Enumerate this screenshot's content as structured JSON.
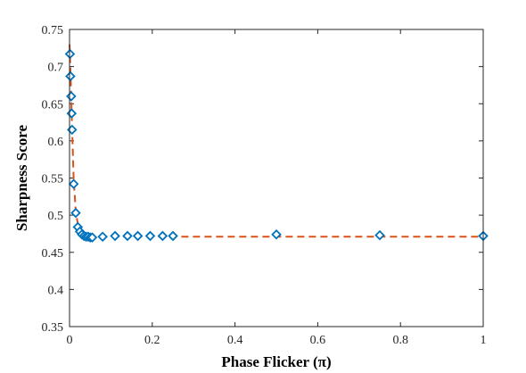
{
  "chart_data": {
    "type": "scatter",
    "xlabel": "Phase Flicker (π)",
    "ylabel": "Sharpness Score",
    "xlim": [
      0,
      1
    ],
    "ylim": [
      0.35,
      0.75
    ],
    "xticks": [
      "0",
      "0.2",
      "0.4",
      "0.6",
      "0.8",
      "1"
    ],
    "yticks": [
      "0.35",
      "0.4",
      "0.45",
      "0.5",
      "0.55",
      "0.6",
      "0.65",
      "0.7",
      "0.75"
    ],
    "grid": false,
    "series": [
      {
        "style": "markers",
        "marker": "diamond",
        "color": "#0072BD",
        "x": [
          0.001,
          0.002,
          0.004,
          0.005,
          0.006,
          0.01,
          0.015,
          0.02,
          0.025,
          0.03,
          0.035,
          0.04,
          0.045,
          0.05,
          0.055,
          0.08,
          0.11,
          0.14,
          0.165,
          0.195,
          0.225,
          0.25,
          0.5,
          0.75,
          1.0
        ],
        "y": [
          0.717,
          0.687,
          0.66,
          0.637,
          0.615,
          0.542,
          0.503,
          0.484,
          0.478,
          0.474,
          0.472,
          0.471,
          0.471,
          0.47,
          0.47,
          0.471,
          0.472,
          0.472,
          0.472,
          0.472,
          0.472,
          0.472,
          0.474,
          0.473,
          0.472
        ]
      },
      {
        "style": "dashed-line",
        "color": "#D95319",
        "x": [
          0,
          0.003,
          0.006,
          0.01,
          0.015,
          0.02,
          0.03,
          0.04,
          0.06,
          0.1,
          0.25,
          0.5,
          0.75,
          1.0
        ],
        "y": [
          0.73,
          0.68,
          0.62,
          0.55,
          0.505,
          0.488,
          0.476,
          0.473,
          0.471,
          0.471,
          0.471,
          0.471,
          0.471,
          0.471
        ]
      }
    ]
  }
}
